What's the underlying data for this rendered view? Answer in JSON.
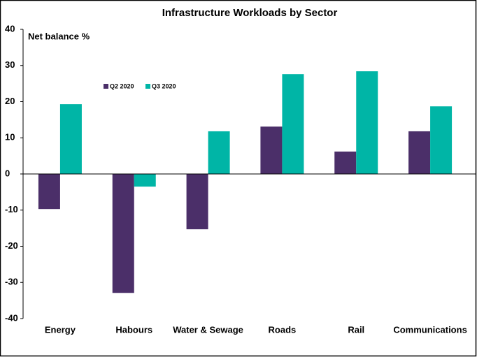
{
  "chart_data": {
    "type": "bar",
    "title": "Infrastructure Workloads by Sector",
    "y_label": "Net balance %",
    "categories": [
      "Energy",
      "Habours",
      "Water & Sewage",
      "Roads",
      "Rail",
      "Communications"
    ],
    "series": [
      {
        "name": "Q2 2020",
        "color": "#4b2f69",
        "values": [
          -9.7,
          -32.9,
          -15.3,
          13.1,
          6.2,
          11.8
        ]
      },
      {
        "name": "Q3 2020",
        "color": "#00b5a6",
        "values": [
          19.3,
          -3.5,
          11.8,
          27.6,
          28.4,
          18.7
        ]
      }
    ],
    "ylim": [
      -40,
      40
    ],
    "yticks": [
      -40,
      -30,
      -20,
      -10,
      0,
      10,
      20,
      30,
      40
    ]
  }
}
